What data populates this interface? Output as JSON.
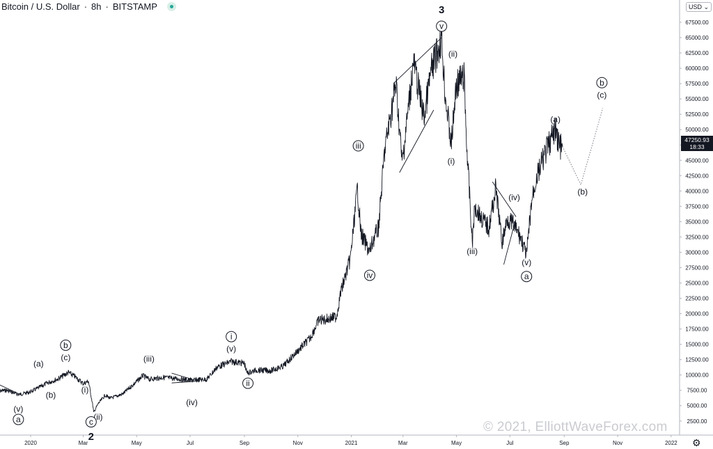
{
  "header": {
    "symbol": "Bitcoin / U.S. Dollar",
    "interval": "8h",
    "exchange": "BITSTAMP",
    "status_color": "#26a69a"
  },
  "currency_button": "USD",
  "price_tag": {
    "price": "47250.93",
    "countdown": "18:33"
  },
  "watermark": "© 2021, ElliottWaveForex.com",
  "settings_icon": "gear-icon",
  "chart_data": {
    "type": "line",
    "title": "",
    "xlabel": "",
    "ylabel": "",
    "ylim": [
      0,
      70000
    ],
    "x_tick_labels": [
      "2020",
      "Mar",
      "May",
      "Jul",
      "Sep",
      "Nov",
      "2021",
      "Mar",
      "May",
      "Jul",
      "Sep",
      "Nov",
      "2022"
    ],
    "y_tick_labels": [
      "2500.00",
      "5000.00",
      "7500.00",
      "10000.00",
      "12500.00",
      "15000.00",
      "17500.00",
      "20000.00",
      "22500.00",
      "25000.00",
      "27500.00",
      "30000.00",
      "32500.00",
      "35000.00",
      "37500.00",
      "40000.00",
      "42500.00",
      "45000.00",
      "47500.00",
      "50000.00",
      "52500.00",
      "55000.00",
      "57500.00",
      "60000.00",
      "62500.00",
      "65000.00",
      "67500.00"
    ],
    "y_tick_values": [
      2500,
      5000,
      7500,
      10000,
      12500,
      15000,
      17500,
      20000,
      22500,
      25000,
      27500,
      30000,
      32500,
      35000,
      37500,
      40000,
      42500,
      45000,
      47500,
      50000,
      52500,
      55000,
      57500,
      60000,
      62500,
      65000,
      67500
    ],
    "series": [
      {
        "color": "#131722",
        "points": [
          [
            "2019-11-25",
            7400
          ],
          [
            "2019-12-05",
            7500
          ],
          [
            "2019-12-18",
            6800
          ],
          [
            "2019-12-31",
            7200
          ],
          [
            "2020-01-10",
            7900
          ],
          [
            "2020-01-20",
            8700
          ],
          [
            "2020-02-01",
            9350
          ],
          [
            "2020-02-13",
            10400
          ],
          [
            "2020-02-20",
            9800
          ],
          [
            "2020-03-01",
            8600
          ],
          [
            "2020-03-07",
            9000
          ],
          [
            "2020-03-12",
            5000
          ],
          [
            "2020-03-13",
            3900
          ],
          [
            "2020-03-18",
            5300
          ],
          [
            "2020-03-26",
            6700
          ],
          [
            "2020-04-01",
            6200
          ],
          [
            "2020-04-15",
            6900
          ],
          [
            "2020-04-30",
            8800
          ],
          [
            "2020-05-08",
            9900
          ],
          [
            "2020-05-15",
            9300
          ],
          [
            "2020-06-01",
            9600
          ],
          [
            "2020-06-15",
            9400
          ],
          [
            "2020-07-01",
            9150
          ],
          [
            "2020-07-20",
            9300
          ],
          [
            "2020-08-01",
            11300
          ],
          [
            "2020-08-17",
            12200
          ],
          [
            "2020-09-01",
            11900
          ],
          [
            "2020-09-04",
            10300
          ],
          [
            "2020-09-15",
            10800
          ],
          [
            "2020-10-01",
            10700
          ],
          [
            "2020-10-15",
            11400
          ],
          [
            "2020-10-31",
            13800
          ],
          [
            "2020-11-15",
            16000
          ],
          [
            "2020-11-25",
            19000
          ],
          [
            "2020-12-01",
            19000
          ],
          [
            "2020-12-15",
            19500
          ],
          [
            "2020-12-20",
            23500
          ],
          [
            "2020-12-31",
            29000
          ],
          [
            "2021-01-08",
            40500
          ],
          [
            "2021-01-12",
            33000
          ],
          [
            "2021-01-22",
            30000
          ],
          [
            "2021-01-26",
            32000
          ],
          [
            "2021-02-01",
            34000
          ],
          [
            "2021-02-08",
            46500
          ],
          [
            "2021-02-21",
            57500
          ],
          [
            "2021-02-28",
            44500
          ],
          [
            "2021-03-13",
            61000
          ],
          [
            "2021-03-25",
            52000
          ],
          [
            "2021-04-02",
            59500
          ],
          [
            "2021-04-14",
            64800
          ],
          [
            "2021-04-18",
            56000
          ],
          [
            "2021-04-25",
            47500
          ],
          [
            "2021-05-01",
            57500
          ],
          [
            "2021-05-10",
            58500
          ],
          [
            "2021-05-12",
            49500
          ],
          [
            "2021-05-19",
            31500
          ],
          [
            "2021-05-22",
            37500
          ],
          [
            "2021-05-30",
            35500
          ],
          [
            "2021-06-07",
            34000
          ],
          [
            "2021-06-15",
            40500
          ],
          [
            "2021-06-22",
            31500
          ],
          [
            "2021-06-28",
            35500
          ],
          [
            "2021-07-05",
            34500
          ],
          [
            "2021-07-13",
            32500
          ],
          [
            "2021-07-20",
            29500
          ],
          [
            "2021-07-26",
            38500
          ],
          [
            "2021-07-31",
            42000
          ],
          [
            "2021-08-07",
            44800
          ],
          [
            "2021-08-14",
            47500
          ],
          [
            "2021-08-22",
            50000
          ],
          [
            "2021-08-27",
            47200
          ],
          [
            "2021-08-30",
            47250
          ]
        ]
      }
    ],
    "projection": [
      [
        "2021-08-30",
        47250
      ],
      [
        "2021-09-20",
        41000
      ],
      [
        "2021-10-15",
        53500
      ]
    ],
    "wave_labels": [
      {
        "text": "(v)",
        "date": "2019-12-18",
        "price": 4000
      },
      {
        "text": "a",
        "date": "2019-12-18",
        "price": 2300,
        "circled": true
      },
      {
        "text": "(a)",
        "date": "2020-01-10",
        "price": 11400
      },
      {
        "text": "(b)",
        "date": "2020-01-24",
        "price": 6300
      },
      {
        "text": "b",
        "date": "2020-02-10",
        "price": 14400,
        "circled": true
      },
      {
        "text": "(c)",
        "date": "2020-02-10",
        "price": 12400
      },
      {
        "text": "(i)",
        "date": "2020-03-03",
        "price": 7100
      },
      {
        "text": "(ii)",
        "date": "2020-03-18",
        "price": 2700
      },
      {
        "text": "c",
        "date": "2020-03-10",
        "price": 1900,
        "circled": true
      },
      {
        "text": "2",
        "date": "2020-03-10",
        "price": -600,
        "bold": true
      },
      {
        "text": "(iii)",
        "date": "2020-05-15",
        "price": 12200
      },
      {
        "text": "(iv)",
        "date": "2020-07-03",
        "price": 5100
      },
      {
        "text": "i",
        "date": "2020-08-17",
        "price": 15800,
        "circled": true
      },
      {
        "text": "(v)",
        "date": "2020-08-17",
        "price": 13800
      },
      {
        "text": "ii",
        "date": "2020-09-05",
        "price": 8200,
        "circled": true
      },
      {
        "text": "iii",
        "date": "2021-01-09",
        "price": 46900,
        "circled": true
      },
      {
        "text": "iv",
        "date": "2021-01-22",
        "price": 25800,
        "circled": true
      },
      {
        "text": "3",
        "date": "2021-04-14",
        "price": 69000,
        "bold": true
      },
      {
        "text": "v",
        "date": "2021-04-14",
        "price": 66400,
        "circled": true
      },
      {
        "text": "(ii)",
        "date": "2021-04-27",
        "price": 61900
      },
      {
        "text": "(i)",
        "date": "2021-04-25",
        "price": 44400
      },
      {
        "text": "(iii)",
        "date": "2021-05-19",
        "price": 29700
      },
      {
        "text": "(iv)",
        "date": "2021-07-06",
        "price": 38500
      },
      {
        "text": "(v)",
        "date": "2021-07-20",
        "price": 27900
      },
      {
        "text": "a",
        "date": "2021-07-20",
        "price": 25600,
        "circled": true
      },
      {
        "text": "(a)",
        "date": "2021-08-22",
        "price": 51200
      },
      {
        "text": "(b)",
        "date": "2021-09-22",
        "price": 39400
      },
      {
        "text": "b",
        "date": "2021-10-14",
        "price": 57200,
        "circled": true
      },
      {
        "text": "(c)",
        "date": "2021-10-14",
        "price": 55200
      }
    ],
    "trendlines": [
      [
        [
          "2019-11-25",
          8500
        ],
        [
          "2019-12-22",
          6700
        ]
      ],
      [
        [
          "2020-06-10",
          10300
        ],
        [
          "2020-07-10",
          9000
        ]
      ],
      [
        [
          "2020-06-10",
          8700
        ],
        [
          "2020-07-10",
          9000
        ]
      ],
      [
        [
          "2021-02-18",
          57500
        ],
        [
          "2021-04-14",
          65000
        ]
      ],
      [
        [
          "2021-02-25",
          43000
        ],
        [
          "2021-04-05",
          53200
        ]
      ],
      [
        [
          "2021-06-11",
          41500
        ],
        [
          "2021-07-08",
          35800
        ]
      ],
      [
        [
          "2021-06-24",
          28000
        ],
        [
          "2021-07-06",
          34500
        ]
      ]
    ]
  }
}
